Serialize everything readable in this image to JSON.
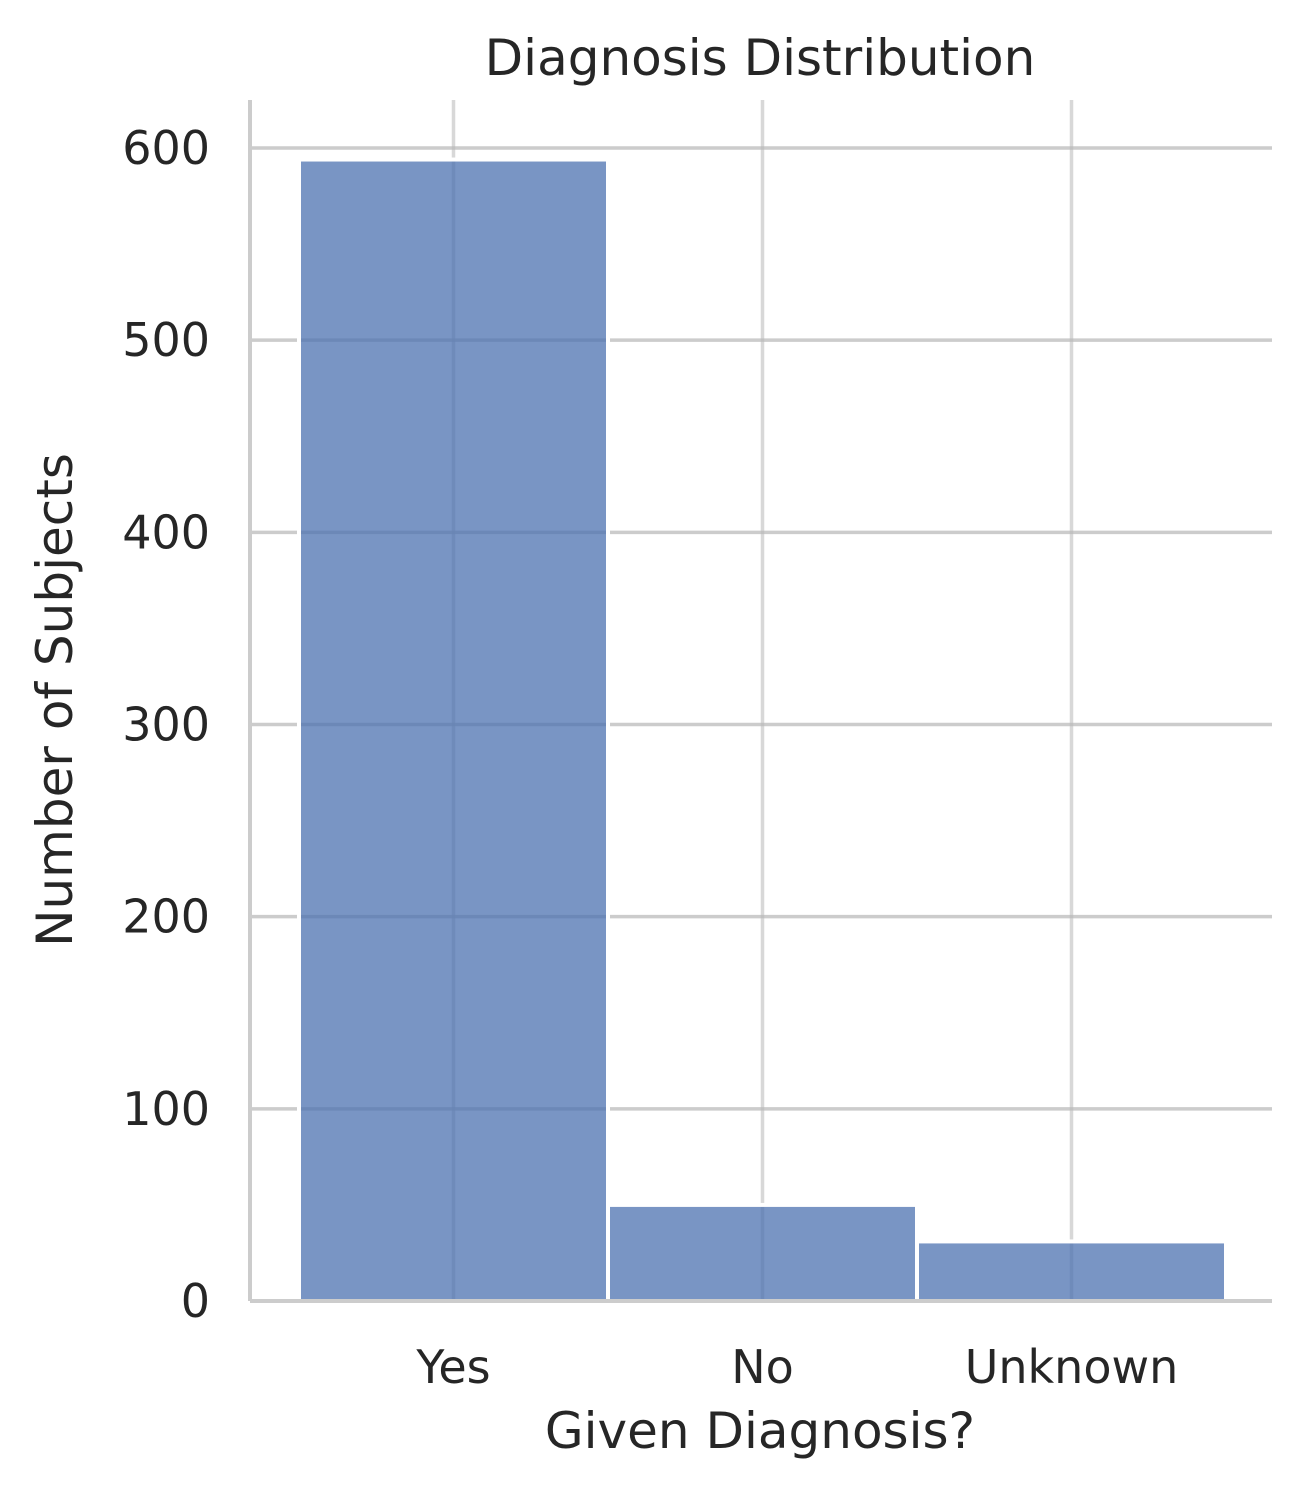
{
  "chart_data": {
    "type": "bar",
    "title": "Diagnosis Distribution",
    "xlabel": "Given Diagnosis?",
    "ylabel": "Number of Subjects",
    "categories": [
      "Yes",
      "No",
      "Unknown"
    ],
    "values": [
      594,
      50,
      31
    ],
    "ylim": [
      0,
      625
    ],
    "yticks": [
      0,
      100,
      200,
      300,
      400,
      500,
      600
    ],
    "grid": true,
    "bar_color": "#4c72b0"
  }
}
